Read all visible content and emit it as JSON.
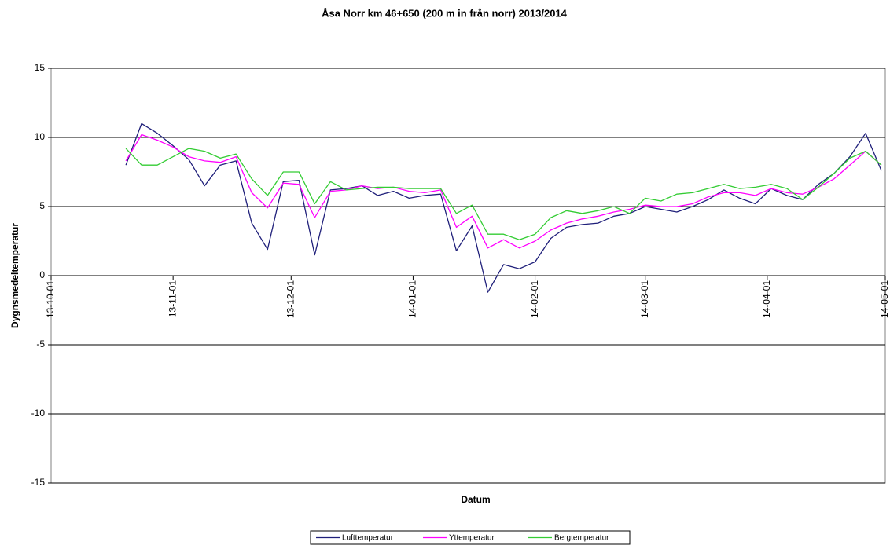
{
  "chart_data": {
    "type": "line",
    "title": "Åsa Norr km 46+650 (200 m in från norr) 2013/2014",
    "xlabel": "Datum",
    "ylabel": "Dygnsmedeltemperatur",
    "x": [
      "13-10-20",
      "13-10-24",
      "13-10-28",
      "13-11-01",
      "13-11-05",
      "13-11-09",
      "13-11-13",
      "13-11-17",
      "13-11-21",
      "13-11-25",
      "13-11-29",
      "13-12-03",
      "13-12-07",
      "13-12-11",
      "13-12-15",
      "13-12-19",
      "13-12-23",
      "13-12-27",
      "13-12-31",
      "14-01-04",
      "14-01-08",
      "14-01-12",
      "14-01-16",
      "14-01-20",
      "14-01-24",
      "14-01-28",
      "14-02-01",
      "14-02-05",
      "14-02-09",
      "14-02-13",
      "14-02-17",
      "14-02-21",
      "14-02-25",
      "14-03-01",
      "14-03-05",
      "14-03-09",
      "14-03-13",
      "14-03-17",
      "14-03-21",
      "14-03-25",
      "14-03-29",
      "14-04-02",
      "14-04-06",
      "14-04-10",
      "14-04-14",
      "14-04-18",
      "14-04-22",
      "14-04-26",
      "14-04-30"
    ],
    "series": [
      {
        "name": "Lufttemperatur",
        "color": "#1f1f7a",
        "values": [
          8.0,
          11.0,
          10.3,
          9.4,
          8.4,
          6.5,
          8.0,
          8.3,
          3.8,
          1.9,
          6.8,
          6.9,
          1.5,
          6.2,
          6.3,
          6.5,
          5.8,
          6.1,
          5.6,
          5.8,
          5.9,
          1.8,
          3.6,
          -1.2,
          0.8,
          0.5,
          1.0,
          2.7,
          3.5,
          3.7,
          3.8,
          4.3,
          4.5,
          5.0,
          4.8,
          4.6,
          5.0,
          5.5,
          6.2,
          5.6,
          5.2,
          6.3,
          5.8,
          5.5,
          6.6,
          7.4,
          8.6,
          10.3,
          7.6
        ]
      },
      {
        "name": "Yttemperatur",
        "color": "#ff00ff",
        "values": [
          8.3,
          10.2,
          9.8,
          9.3,
          8.6,
          8.3,
          8.2,
          8.6,
          6.0,
          4.9,
          6.7,
          6.6,
          4.2,
          6.1,
          6.2,
          6.5,
          6.3,
          6.4,
          6.1,
          6.0,
          6.2,
          3.5,
          4.3,
          2.0,
          2.6,
          2.0,
          2.5,
          3.3,
          3.8,
          4.1,
          4.3,
          4.6,
          4.8,
          5.1,
          5.0,
          5.0,
          5.2,
          5.7,
          6.0,
          6.0,
          5.8,
          6.3,
          6.0,
          5.9,
          6.4,
          7.0,
          8.0,
          9.0,
          8.0
        ]
      },
      {
        "name": "Bergtemperatur",
        "color": "#33cc33",
        "values": [
          9.2,
          8.0,
          8.0,
          8.6,
          9.2,
          9.0,
          8.5,
          8.8,
          7.0,
          5.8,
          7.5,
          7.5,
          5.2,
          6.8,
          6.2,
          6.3,
          6.4,
          6.4,
          6.3,
          6.3,
          6.3,
          4.5,
          5.1,
          3.0,
          3.0,
          2.6,
          3.0,
          4.2,
          4.7,
          4.5,
          4.7,
          5.0,
          4.5,
          5.6,
          5.4,
          5.9,
          6.0,
          6.3,
          6.6,
          6.3,
          6.4,
          6.6,
          6.3,
          5.5,
          6.4,
          7.4,
          8.5,
          9.0,
          8.0
        ]
      }
    ],
    "xlim": [
      "13-10-01",
      "14-05-01"
    ],
    "xticks": [
      "13-10-01",
      "13-11-01",
      "13-12-01",
      "14-01-01",
      "14-02-01",
      "14-03-01",
      "14-04-01",
      "14-05-01"
    ],
    "ylim": [
      -15,
      15
    ],
    "yticks": [
      -15,
      -10,
      -5,
      0,
      5,
      10,
      15
    ],
    "grid": true,
    "legend": "bottom"
  }
}
